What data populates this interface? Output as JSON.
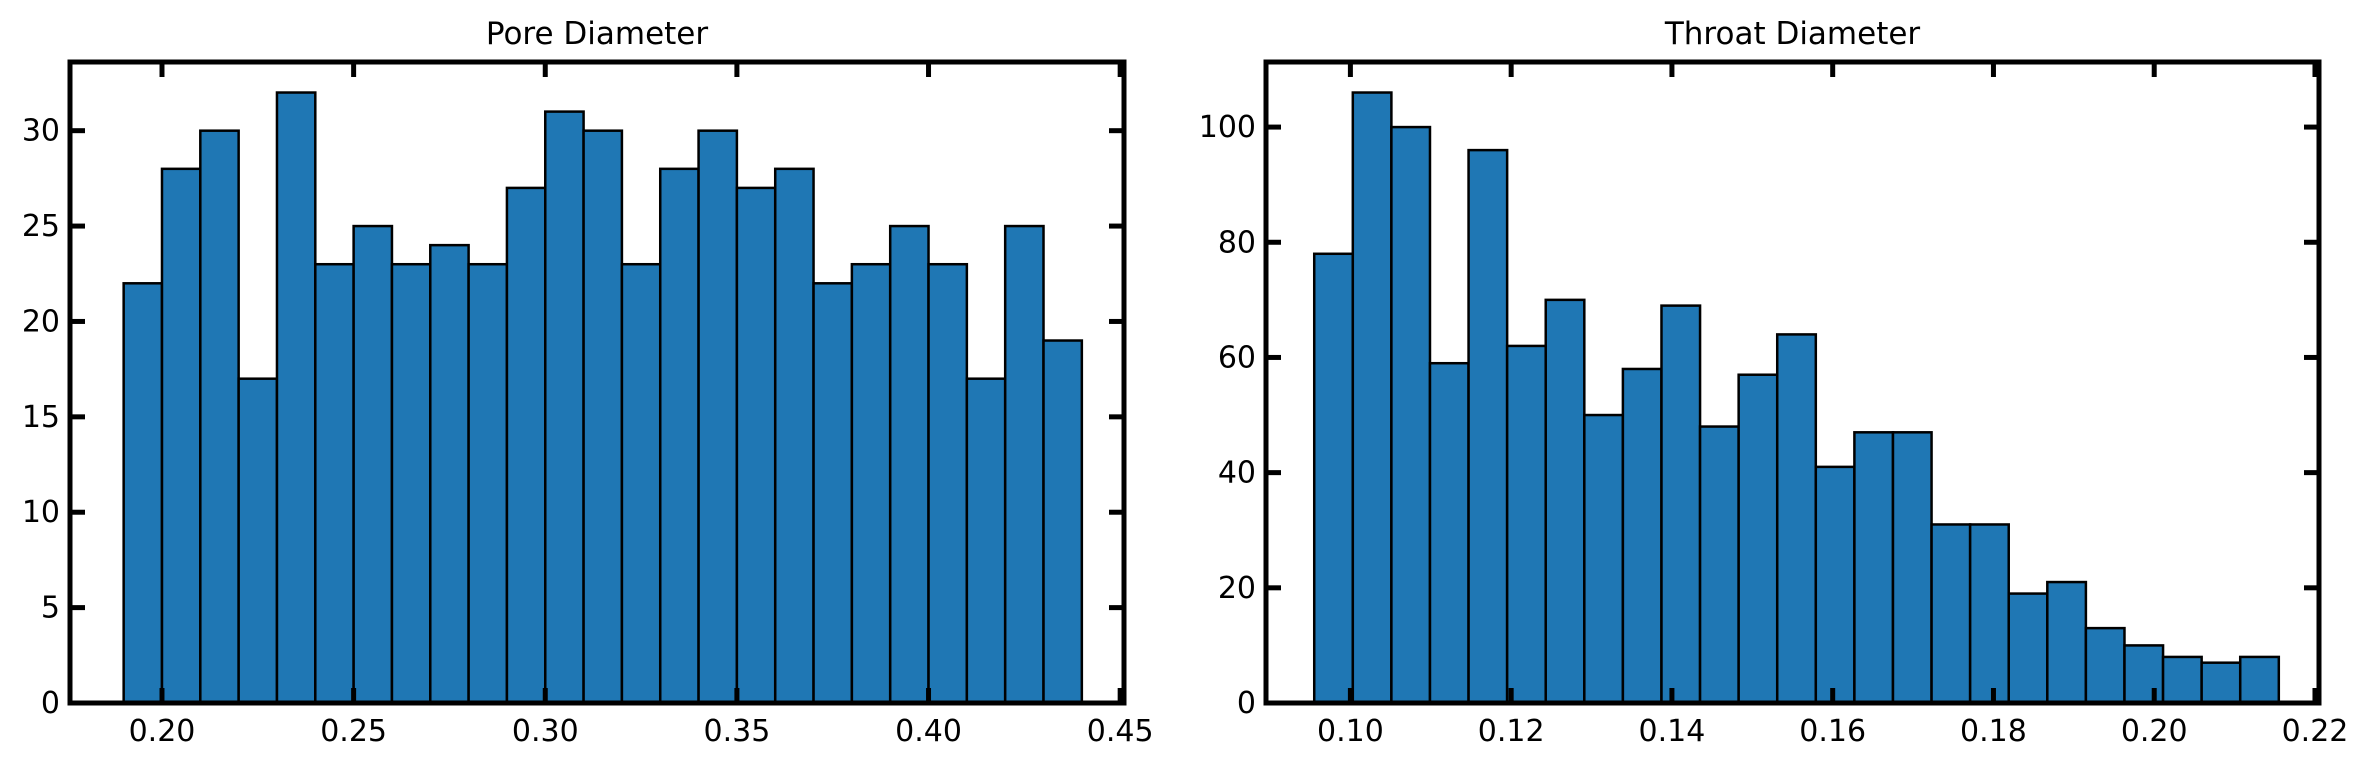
{
  "chart_data": [
    {
      "type": "bar",
      "subtype": "histogram",
      "title": "Pore Diameter",
      "xlabel": "",
      "ylabel": "",
      "bar_color": "#1f77b4",
      "edge_color": "#000000",
      "xlim": [
        0.176,
        0.451
      ],
      "ylim": [
        0,
        33.6
      ],
      "bin_start": 0.19,
      "bin_width": 0.01,
      "values": [
        22,
        28,
        30,
        17,
        32,
        23,
        25,
        23,
        24,
        23,
        27,
        31,
        30,
        23,
        28,
        30,
        27,
        28,
        22,
        23,
        25,
        23,
        17,
        25,
        19
      ],
      "xticks": [
        0.2,
        0.25,
        0.3,
        0.35,
        0.4,
        0.45
      ],
      "xtick_labels": [
        "0.20",
        "0.25",
        "0.30",
        "0.35",
        "0.40",
        "0.45"
      ],
      "yticks": [
        0,
        5,
        10,
        15,
        20,
        25,
        30
      ],
      "ytick_labels": [
        "0",
        "5",
        "10",
        "15",
        "20",
        "25",
        "30"
      ]
    },
    {
      "type": "bar",
      "subtype": "histogram",
      "title": "Throat Diameter",
      "xlabel": "",
      "ylabel": "",
      "bar_color": "#1f77b4",
      "edge_color": "#000000",
      "xlim": [
        0.0895,
        0.2205
      ],
      "ylim": [
        0,
        111.3
      ],
      "bin_start": 0.0955,
      "bin_width": 0.0048,
      "values": [
        78,
        106,
        100,
        59,
        96,
        62,
        70,
        50,
        58,
        69,
        48,
        57,
        64,
        41,
        47,
        47,
        31,
        31,
        19,
        21,
        13,
        10,
        8,
        7,
        8
      ],
      "xticks": [
        0.1,
        0.12,
        0.14,
        0.16,
        0.18,
        0.2,
        0.22
      ],
      "xtick_labels": [
        "0.10",
        "0.12",
        "0.14",
        "0.16",
        "0.18",
        "0.20",
        "0.22"
      ],
      "yticks": [
        0,
        20,
        40,
        60,
        80,
        100
      ],
      "ytick_labels": [
        "0",
        "20",
        "40",
        "60",
        "80",
        "100"
      ]
    }
  ]
}
